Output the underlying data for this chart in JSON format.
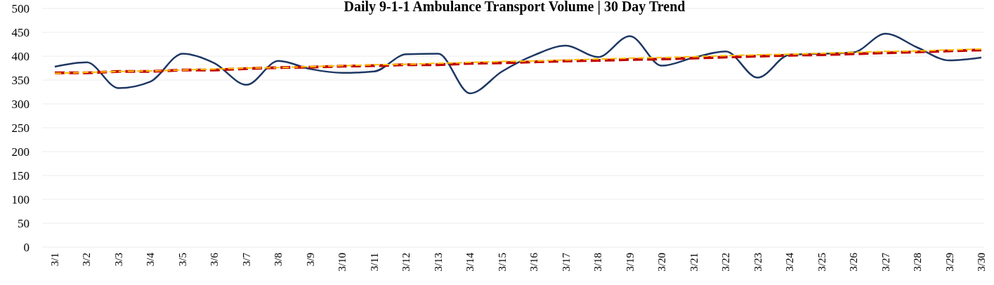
{
  "chart_data": {
    "type": "line",
    "title": "Daily 9-1-1 Ambulance Transport Volume | 30 Day Trend",
    "categories": [
      "3/1",
      "3/2",
      "3/3",
      "3/4",
      "3/5",
      "3/6",
      "3/7",
      "3/8",
      "3/9",
      "3/10",
      "3/11",
      "3/12",
      "3/13",
      "3/14",
      "3/15",
      "3/16",
      "3/17",
      "3/18",
      "3/19",
      "3/20",
      "3/21",
      "3/22",
      "3/23",
      "3/24",
      "3/25",
      "3/26",
      "3/27",
      "3/28",
      "3/29",
      "3/30"
    ],
    "series": [
      {
        "color": "#1f3864",
        "line_style": "solid",
        "values": [
          378,
          387,
          333,
          347,
          405,
          385,
          340,
          390,
          373,
          365,
          368,
          404,
          405,
          322,
          368,
          402,
          422,
          398,
          442,
          380,
          397,
          410,
          355,
          403,
          405,
          408,
          447,
          418,
          391,
          397
        ]
      },
      {
        "color": "#ffc000",
        "line_style": "dashed",
        "values": [
          364,
          366,
          368,
          369,
          371,
          373,
          375,
          376,
          378,
          380,
          382,
          383,
          385,
          387,
          389,
          390,
          392,
          394,
          396,
          397,
          399,
          401,
          403,
          404,
          406,
          408,
          410,
          411,
          413,
          415
        ]
      },
      {
        "color": "#c00000",
        "line_style": "dashed",
        "values": [
          365,
          365,
          368,
          368,
          371,
          371,
          374,
          376,
          377,
          379,
          380,
          382,
          382,
          385,
          386,
          388,
          390,
          391,
          393,
          394,
          396,
          398,
          400,
          402,
          403,
          405,
          407,
          409,
          411,
          413
        ]
      }
    ],
    "ylim": [
      0,
      500
    ],
    "yticks": [
      0,
      50,
      100,
      150,
      200,
      250,
      300,
      350,
      400,
      450,
      500
    ],
    "grid": "y",
    "marker": "none"
  }
}
